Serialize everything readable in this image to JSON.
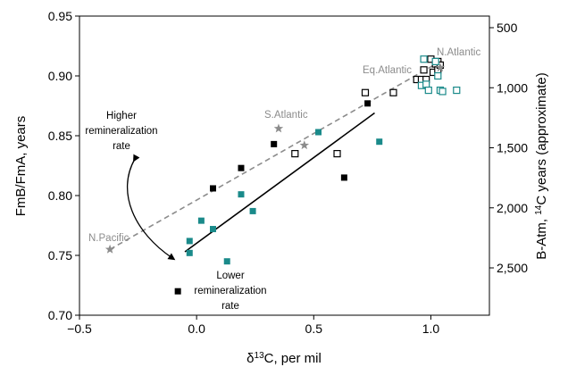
{
  "chart_data": {
    "type": "scatter",
    "xlabel": "δ13C, per mil",
    "ylabel": "FmB/FmA, years",
    "y2label": "B-Atm, 14C years (approximate)",
    "xlim": [
      -0.5,
      1.25
    ],
    "ylim": [
      0.7,
      0.95
    ],
    "xticks": [
      -0.5,
      0.0,
      0.5,
      1.0
    ],
    "xtick_labels": [
      "−0.5",
      "0.0",
      "0.5",
      "1.0"
    ],
    "yticks": [
      0.7,
      0.75,
      0.8,
      0.85,
      0.9,
      0.95
    ],
    "ytick_labels": [
      "0.70",
      "0.75",
      "0.80",
      "0.85",
      "0.90",
      "0.95"
    ],
    "y2ticks": [
      500,
      1000,
      1500,
      2000,
      2500
    ],
    "y2tick_labels": [
      "500",
      "1,000",
      "1,500",
      "2,000",
      "2,500"
    ],
    "grid": false,
    "colors": {
      "black": "#000000",
      "teal": "#1a8a8a",
      "gray": "#8c8c8c"
    },
    "series": [
      {
        "marker": "filled-square",
        "color": "#000000",
        "points": [
          [
            -0.08,
            0.72
          ],
          [
            0.07,
            0.806
          ],
          [
            0.19,
            0.823
          ],
          [
            0.33,
            0.843
          ],
          [
            0.63,
            0.815
          ],
          [
            0.73,
            0.877
          ]
        ]
      },
      {
        "marker": "filled-square",
        "color": "#1a8a8a",
        "points": [
          [
            -0.03,
            0.752
          ],
          [
            -0.03,
            0.762
          ],
          [
            0.02,
            0.779
          ],
          [
            0.07,
            0.772
          ],
          [
            0.13,
            0.745
          ],
          [
            0.19,
            0.801
          ],
          [
            0.24,
            0.787
          ],
          [
            0.52,
            0.853
          ],
          [
            0.78,
            0.845
          ]
        ]
      },
      {
        "marker": "open-square",
        "color": "#000000",
        "points": [
          [
            0.42,
            0.835
          ],
          [
            0.6,
            0.835
          ],
          [
            0.72,
            0.886
          ],
          [
            0.84,
            0.886
          ],
          [
            0.94,
            0.897
          ],
          [
            0.96,
            0.897
          ],
          [
            0.97,
            0.905
          ],
          [
            0.98,
            0.897
          ],
          [
            1.0,
            0.914
          ],
          [
            1.01,
            0.903
          ],
          [
            1.02,
            0.91
          ],
          [
            1.03,
            0.912
          ],
          [
            1.03,
            0.905
          ],
          [
            1.04,
            0.909
          ]
        ]
      },
      {
        "marker": "open-square",
        "color": "#1a8a8a",
        "points": [
          [
            0.96,
            0.892
          ],
          [
            0.97,
            0.914
          ],
          [
            0.98,
            0.893
          ],
          [
            0.99,
            0.888
          ],
          [
            1.02,
            0.912
          ],
          [
            1.03,
            0.9
          ],
          [
            1.04,
            0.888
          ],
          [
            1.05,
            0.887
          ],
          [
            1.11,
            0.888
          ]
        ]
      },
      {
        "marker": "star",
        "color": "#8c8c8c",
        "points": [
          [
            -0.37,
            0.755
          ],
          [
            0.35,
            0.856
          ],
          [
            0.46,
            0.842
          ],
          [
            1.04,
            0.907
          ]
        ]
      }
    ],
    "fits": [
      {
        "style": "solid",
        "color": "#000000",
        "from": [
          -0.05,
          0.753
        ],
        "to": [
          0.76,
          0.869
        ]
      },
      {
        "style": "dashed",
        "color": "#8c8c8c",
        "from": [
          -0.37,
          0.755
        ],
        "to": [
          1.04,
          0.912
        ]
      }
    ],
    "annotations": {
      "n_atlantic": "N.Atlantic",
      "eq_atlantic": "Eq.Atlantic",
      "s_atlantic": "S.Atlantic",
      "n_pacific": "N.Pacific",
      "higher_1": "Higher",
      "higher_2": "remineralization",
      "higher_3": "rate",
      "lower_1": "Lower",
      "lower_2": "remineralization",
      "lower_3": "rate"
    }
  }
}
